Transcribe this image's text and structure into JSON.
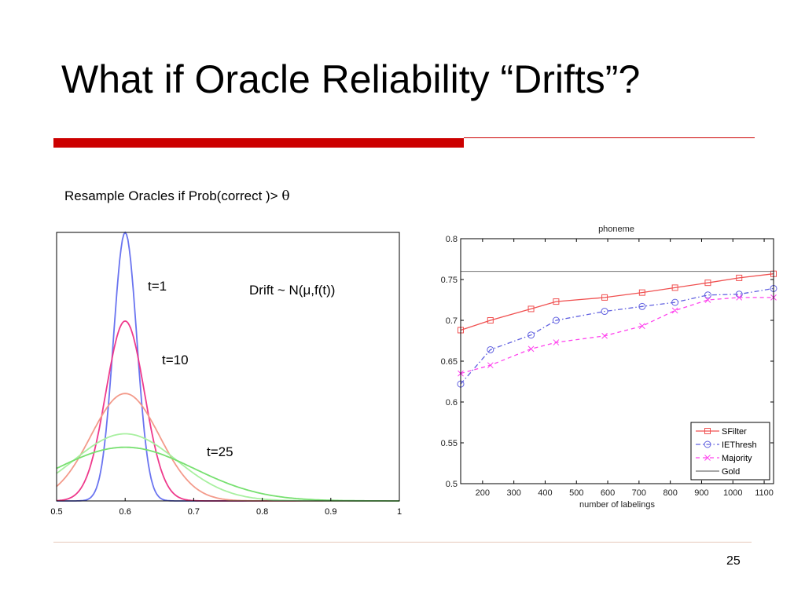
{
  "slide": {
    "title": "What if Oracle Reliability “Drifts”?",
    "subtitle_prefix": "Resample Oracles if Prob(correct )> ",
    "subtitle_symbol": "θ",
    "page_number": "25",
    "accent_color": "#cc0000"
  },
  "chart_data": [
    {
      "type": "line",
      "xlim": [
        0.5,
        1
      ],
      "x_ticks": [
        "0.5",
        "0.6",
        "0.7",
        "0.8",
        "0.9",
        "1"
      ],
      "annotations": [
        "t=1",
        "t=10",
        "t=25",
        "Drift ~ N(μ,f(t))"
      ],
      "series": [
        {
          "mean": 0.6,
          "sd": 0.017,
          "peak": 1.0,
          "color": "#6a74f0"
        },
        {
          "mean": 0.6,
          "sd": 0.028,
          "peak": 0.67,
          "color": "#ee3a8c"
        },
        {
          "mean": 0.6,
          "sd": 0.05,
          "peak": 0.4,
          "color": "#f39a8a"
        },
        {
          "mean": 0.6,
          "sd": 0.075,
          "peak": 0.25,
          "color": "#a8f0a0"
        },
        {
          "mean": 0.6,
          "sd": 0.1,
          "peak": 0.2,
          "color": "#77e070"
        }
      ]
    },
    {
      "type": "line",
      "title": "phoneme",
      "xlabel": "number of labelings",
      "xlim": [
        130,
        1130
      ],
      "ylim": [
        0.5,
        0.8
      ],
      "x_ticks": [
        "200",
        "300",
        "400",
        "500",
        "600",
        "700",
        "800",
        "900",
        "1000",
        "1100"
      ],
      "y_ticks": [
        "0.5",
        "0.55",
        "0.6",
        "0.65",
        "0.7",
        "0.75",
        "0.8"
      ],
      "legend_position": "bottom-right",
      "series": [
        {
          "name": "SFilter",
          "color": "#f05050",
          "marker": "square",
          "x": [
            130,
            225,
            355,
            435,
            590,
            710,
            815,
            920,
            1020,
            1130
          ],
          "y": [
            0.688,
            0.7,
            0.714,
            0.723,
            0.728,
            0.734,
            0.74,
            0.746,
            0.752,
            0.757
          ]
        },
        {
          "name": "IEThresh",
          "color": "#6060e0",
          "marker": "circle",
          "x": [
            130,
            225,
            355,
            435,
            590,
            710,
            815,
            920,
            1020,
            1130
          ],
          "y": [
            0.622,
            0.664,
            0.682,
            0.7,
            0.711,
            0.717,
            0.722,
            0.731,
            0.732,
            0.739
          ]
        },
        {
          "name": "Majority",
          "color": "#ff44ee",
          "marker": "x",
          "x": [
            130,
            225,
            355,
            435,
            590,
            710,
            815,
            920,
            1020,
            1130
          ],
          "y": [
            0.635,
            0.645,
            0.665,
            0.673,
            0.681,
            0.693,
            0.712,
            0.725,
            0.728,
            0.728
          ]
        },
        {
          "name": "Gold",
          "color": "#707070",
          "marker": "none",
          "x": [
            130,
            1130
          ],
          "y": [
            0.76,
            0.76
          ]
        }
      ]
    }
  ]
}
